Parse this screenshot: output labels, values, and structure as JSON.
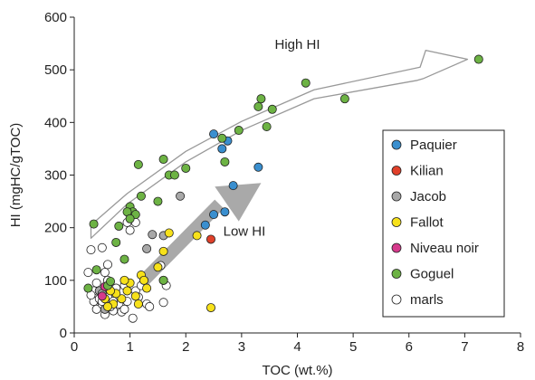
{
  "chart_data": {
    "type": "scatter",
    "xlabel": "TOC (wt.%)",
    "ylabel": "HI (mgHC/gTOC)",
    "xlim": [
      0,
      8
    ],
    "ylim": [
      0,
      600
    ],
    "xticks": [
      0,
      1,
      2,
      3,
      4,
      5,
      6,
      7,
      8
    ],
    "yticks": [
      0,
      100,
      200,
      300,
      400,
      500,
      600
    ],
    "grid": false,
    "legend_position": "right",
    "annotations": [
      {
        "text": "High HI"
      },
      {
        "text": "Low HI"
      }
    ],
    "series": [
      {
        "name": "Paquier",
        "color": "#3a8fcf",
        "points": [
          [
            2.5,
            378
          ],
          [
            2.65,
            350
          ],
          [
            2.75,
            365
          ],
          [
            2.85,
            280
          ],
          [
            3.3,
            315
          ],
          [
            2.35,
            205
          ],
          [
            2.5,
            225
          ],
          [
            2.7,
            230
          ]
        ]
      },
      {
        "name": "Kilian",
        "color": "#e0402a",
        "points": [
          [
            2.45,
            178
          ]
        ]
      },
      {
        "name": "Jacob",
        "color": "#a8a8a8",
        "points": [
          [
            1.9,
            260
          ],
          [
            1.3,
            160
          ],
          [
            1.4,
            187
          ],
          [
            1.6,
            185
          ],
          [
            0.45,
            80
          ],
          [
            0.5,
            75
          ],
          [
            0.55,
            45
          ]
        ]
      },
      {
        "name": "Fallot",
        "color": "#f7e11a",
        "points": [
          [
            1.7,
            190
          ],
          [
            1.6,
            155
          ],
          [
            1.5,
            125
          ],
          [
            1.3,
            85
          ],
          [
            1.2,
            110
          ],
          [
            1.1,
            70
          ],
          [
            1.0,
            95
          ],
          [
            0.95,
            80
          ],
          [
            0.9,
            100
          ],
          [
            0.85,
            65
          ],
          [
            0.7,
            55
          ],
          [
            0.6,
            50
          ],
          [
            0.75,
            75
          ],
          [
            1.15,
            55
          ],
          [
            1.25,
            100
          ],
          [
            1.6,
            100
          ],
          [
            2.2,
            185
          ],
          [
            2.45,
            48
          ],
          [
            0.55,
            65
          ],
          [
            0.65,
            80
          ]
        ]
      },
      {
        "name": "Niveau noir",
        "color": "#d63a8c",
        "points": [
          [
            0.55,
            88
          ],
          [
            0.5,
            70
          ]
        ]
      },
      {
        "name": "Goguel",
        "color": "#6db344",
        "points": [
          [
            7.25,
            520
          ],
          [
            4.15,
            475
          ],
          [
            4.85,
            445
          ],
          [
            3.35,
            445
          ],
          [
            3.3,
            430
          ],
          [
            3.55,
            425
          ],
          [
            3.45,
            392
          ],
          [
            2.95,
            385
          ],
          [
            2.65,
            370
          ],
          [
            2.7,
            325
          ],
          [
            2.0,
            313
          ],
          [
            1.6,
            330
          ],
          [
            1.7,
            300
          ],
          [
            1.8,
            300
          ],
          [
            1.15,
            320
          ],
          [
            1.5,
            250
          ],
          [
            1.2,
            260
          ],
          [
            1.0,
            240
          ],
          [
            1.05,
            230
          ],
          [
            0.95,
            230
          ],
          [
            1.1,
            225
          ],
          [
            1.0,
            217
          ],
          [
            0.8,
            203
          ],
          [
            0.35,
            207
          ],
          [
            0.75,
            172
          ],
          [
            0.9,
            140
          ],
          [
            0.4,
            120
          ],
          [
            0.25,
            85
          ],
          [
            1.6,
            100
          ],
          [
            0.6,
            90
          ],
          [
            0.65,
            98
          ]
        ]
      },
      {
        "name": "marls",
        "color": "#ffffff",
        "points": [
          [
            0.3,
            158
          ],
          [
            0.5,
            162
          ],
          [
            0.6,
            130
          ],
          [
            0.55,
            115
          ],
          [
            0.25,
            115
          ],
          [
            0.4,
            95
          ],
          [
            0.35,
            80
          ],
          [
            0.6,
            100
          ],
          [
            0.75,
            85
          ],
          [
            0.9,
            90
          ],
          [
            1.1,
            80
          ],
          [
            1.15,
            68
          ],
          [
            1.3,
            55
          ],
          [
            1.35,
            50
          ],
          [
            1.6,
            58
          ],
          [
            1.65,
            90
          ],
          [
            1.55,
            128
          ],
          [
            0.95,
            210
          ],
          [
            1.0,
            195
          ],
          [
            1.1,
            210
          ],
          [
            0.35,
            60
          ],
          [
            0.4,
            45
          ],
          [
            0.45,
            65
          ],
          [
            0.5,
            55
          ],
          [
            0.55,
            35
          ],
          [
            0.6,
            70
          ],
          [
            0.7,
            42
          ],
          [
            0.8,
            55
          ],
          [
            0.85,
            40
          ],
          [
            0.95,
            60
          ],
          [
            1.05,
            28
          ],
          [
            0.3,
            72
          ],
          [
            0.5,
            60
          ],
          [
            0.7,
            60
          ],
          [
            0.9,
            45
          ],
          [
            1.2,
            90
          ],
          [
            0.65,
            50
          ]
        ]
      }
    ]
  }
}
